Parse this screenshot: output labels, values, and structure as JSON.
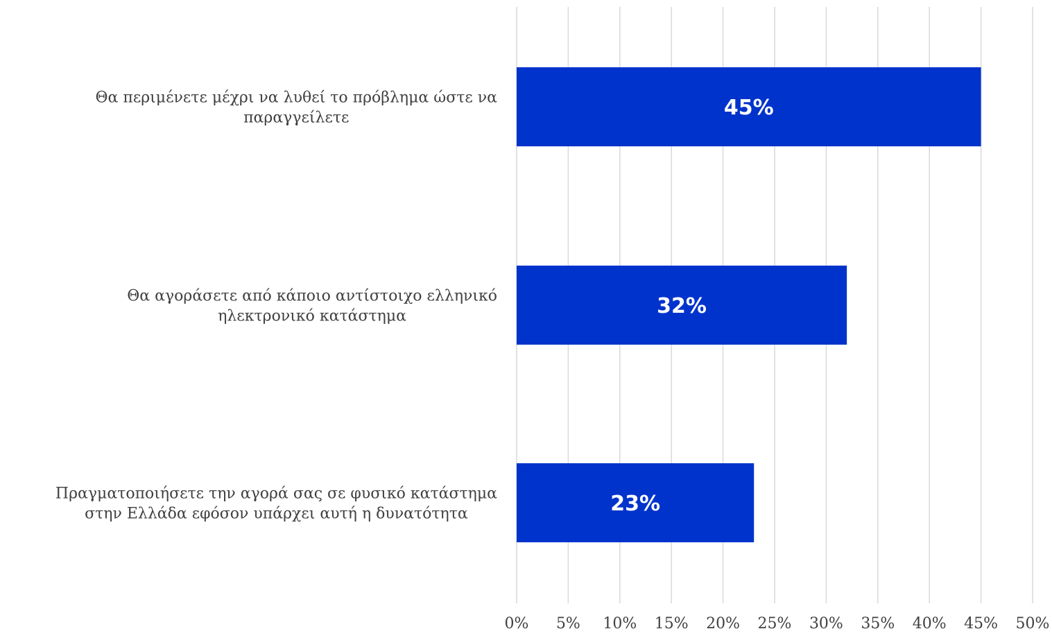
{
  "chart_data": {
    "type": "bar",
    "orientation": "horizontal",
    "title": "",
    "xlabel": "",
    "ylabel": "",
    "categories": [
      [
        "Θα περιμένετε μέχρι να λυθεί το πρόβλημα ώστε να",
        "παραγγείλετε"
      ],
      [
        "Θα αγοράσετε από κάποιο αντίστοιχο ελληνικό",
        "ηλεκτρονικό κατάστημα"
      ],
      [
        "Πραγματοποιήσετε την αγορά σας σε φυσικό κατάστημα",
        "στην Ελλάδα εφόσον υπάρχει αυτή η δυνατότητα"
      ]
    ],
    "values": [
      45,
      32,
      23
    ],
    "data_labels": [
      "45%",
      "32%",
      "23%"
    ],
    "xlim": [
      0,
      50
    ],
    "ticks": [
      0,
      5,
      10,
      15,
      20,
      25,
      30,
      35,
      40,
      45,
      50
    ],
    "tick_labels": [
      "0%",
      "5%",
      "10%",
      "15%",
      "20%",
      "25%",
      "30%",
      "35%",
      "40%",
      "45%",
      "50%"
    ],
    "grid": true,
    "legend": "none",
    "colors": {
      "bar": "#0033CC",
      "grid": "#D9D9D9",
      "text": "#404040",
      "data_label": "#FFFFFF"
    }
  }
}
